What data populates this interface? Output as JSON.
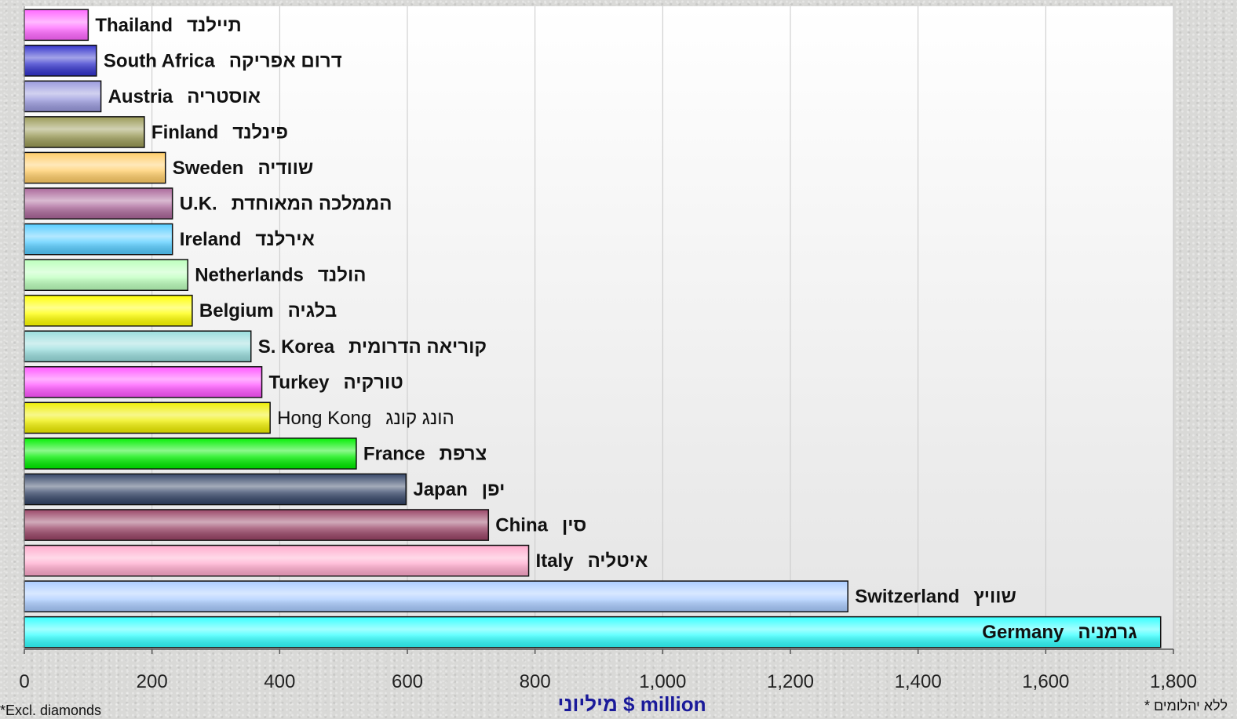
{
  "chart_data": {
    "type": "bar",
    "orientation": "horizontal",
    "xlabel": "מיליוני $ million",
    "xlim": [
      0,
      1800
    ],
    "xticks": [
      0,
      200,
      400,
      600,
      800,
      1000,
      1200,
      1400,
      1600,
      1800
    ],
    "xtick_labels": [
      "0",
      "200",
      "400",
      "600",
      "800",
      "1,000",
      "1,200",
      "1,400",
      "1,600",
      "1,800"
    ],
    "grid": "vertical",
    "bars": [
      {
        "en": "Thailand",
        "he": "תיילנד",
        "value": 100,
        "color": "#ff66ff",
        "bold": true
      },
      {
        "en": "South Africa",
        "he": "דרום אפריקה",
        "value": 113,
        "color": "#3333cc",
        "bold": true
      },
      {
        "en": "Austria",
        "he": "אוסטריה",
        "value": 120,
        "color": "#9999dd",
        "bold": true
      },
      {
        "en": "Finland",
        "he": "פינלנד",
        "value": 188,
        "color": "#999955",
        "bold": true
      },
      {
        "en": "Sweden",
        "he": "שוודיה",
        "value": 221,
        "color": "#ffcc66",
        "bold": true
      },
      {
        "en": "U.K.",
        "he": "הממלכה המאוחדת",
        "value": 232,
        "color": "#aa6699",
        "bold": true
      },
      {
        "en": "Ireland",
        "he": "אירלנד",
        "value": 232,
        "color": "#55ccff",
        "bold": true
      },
      {
        "en": "Netherlands",
        "he": "הולנד",
        "value": 256,
        "color": "#bbffbb",
        "bold": true
      },
      {
        "en": "Belgium",
        "he": "בלגיה",
        "value": 263,
        "color": "#ffff00",
        "bold": true
      },
      {
        "en": "S. Korea",
        "he": "קוריאה הדרומית",
        "value": 355,
        "color": "#99dddd",
        "bold": true
      },
      {
        "en": "Turkey",
        "he": "טורקיה",
        "value": 372,
        "color": "#ff55ff",
        "bold": true
      },
      {
        "en": "Hong Kong",
        "he": "הונג קונג",
        "value": 385,
        "color": "#eeee00",
        "bold": false
      },
      {
        "en": "France",
        "he": "צרפת",
        "value": 520,
        "color": "#00ee00",
        "bold": true
      },
      {
        "en": "Japan",
        "he": "יפן",
        "value": 598,
        "color": "#334466",
        "bold": true
      },
      {
        "en": "China",
        "he": "סין",
        "value": 727,
        "color": "#994466",
        "bold": true
      },
      {
        "en": "Italy",
        "he": "איטליה",
        "value": 790,
        "color": "#ffaacc",
        "bold": true
      },
      {
        "en": "Switzerland",
        "he": "שוויץ",
        "value": 1290,
        "color": "#aaccff",
        "bold": true
      },
      {
        "en": "Germany",
        "he": "גרמניה",
        "value": 1780,
        "color": "#33ffff",
        "bold": true
      }
    ]
  },
  "notes": {
    "left": "*Excl. diamonds",
    "right": "* ללא יהלומים"
  }
}
